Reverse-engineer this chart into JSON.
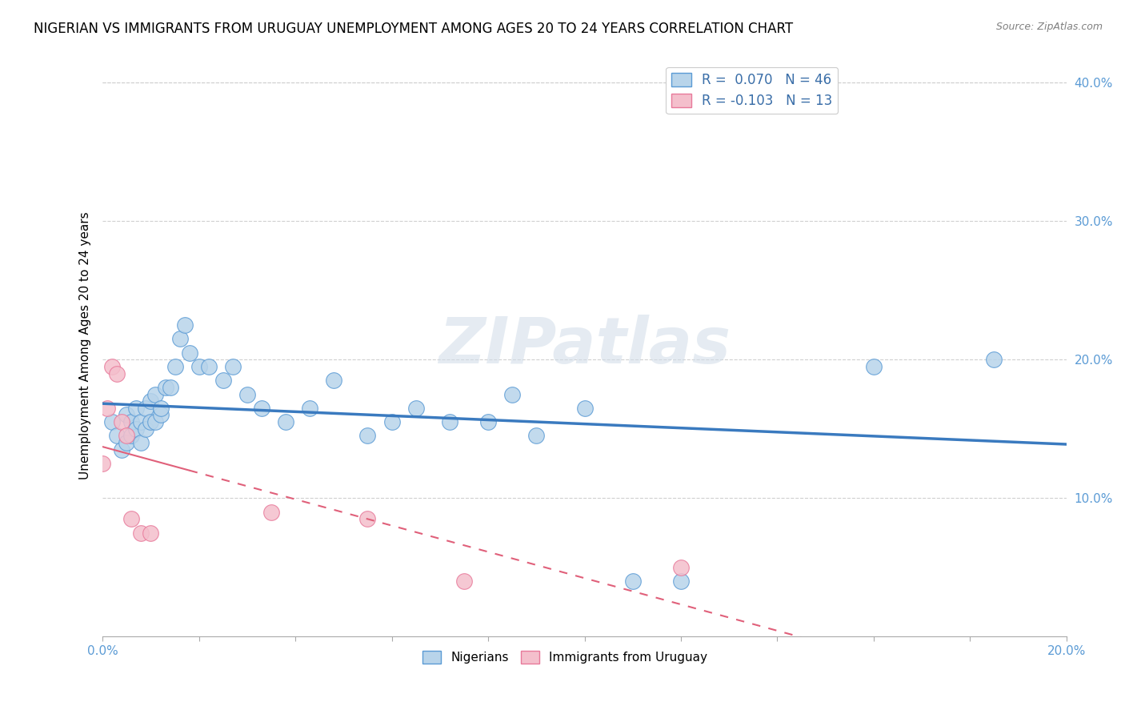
{
  "title": "NIGERIAN VS IMMIGRANTS FROM URUGUAY UNEMPLOYMENT AMONG AGES 20 TO 24 YEARS CORRELATION CHART",
  "source": "Source: ZipAtlas.com",
  "ylabel": "Unemployment Among Ages 20 to 24 years",
  "xlim": [
    0.0,
    0.2
  ],
  "ylim": [
    0.0,
    0.42
  ],
  "background_color": "#ffffff",
  "watermark": "ZIPatlas",
  "nigerian_R": 0.07,
  "nigerian_N": 46,
  "uruguay_R": -0.103,
  "uruguay_N": 13,
  "nigerian_color": "#b8d4ea",
  "nigerian_edge_color": "#5b9bd5",
  "uruguay_color": "#f4bfcc",
  "uruguay_edge_color": "#e8799a",
  "nigerian_line_color": "#3a7abf",
  "uruguay_line_color": "#e0607a",
  "nigerians_x": [
    0.002,
    0.003,
    0.004,
    0.005,
    0.005,
    0.006,
    0.006,
    0.007,
    0.007,
    0.008,
    0.008,
    0.009,
    0.009,
    0.01,
    0.01,
    0.011,
    0.011,
    0.012,
    0.012,
    0.013,
    0.014,
    0.015,
    0.016,
    0.017,
    0.018,
    0.02,
    0.022,
    0.025,
    0.027,
    0.03,
    0.033,
    0.038,
    0.043,
    0.048,
    0.055,
    0.06,
    0.065,
    0.072,
    0.08,
    0.085,
    0.09,
    0.1,
    0.11,
    0.12,
    0.16,
    0.185
  ],
  "nigerians_y": [
    0.155,
    0.145,
    0.135,
    0.14,
    0.16,
    0.145,
    0.155,
    0.15,
    0.165,
    0.155,
    0.14,
    0.15,
    0.165,
    0.155,
    0.17,
    0.155,
    0.175,
    0.16,
    0.165,
    0.18,
    0.18,
    0.195,
    0.215,
    0.225,
    0.205,
    0.195,
    0.195,
    0.185,
    0.195,
    0.175,
    0.165,
    0.155,
    0.165,
    0.185,
    0.145,
    0.155,
    0.165,
    0.155,
    0.155,
    0.175,
    0.145,
    0.165,
    0.04,
    0.04,
    0.195,
    0.2
  ],
  "uruguay_x": [
    0.0,
    0.001,
    0.002,
    0.003,
    0.004,
    0.005,
    0.006,
    0.008,
    0.01,
    0.035,
    0.055,
    0.075,
    0.12
  ],
  "uruguay_y": [
    0.125,
    0.165,
    0.195,
    0.19,
    0.155,
    0.145,
    0.085,
    0.075,
    0.075,
    0.09,
    0.085,
    0.04,
    0.05
  ],
  "legend_blue_label": "R =  0.070   N = 46",
  "legend_pink_label": "R = -0.103   N = 13",
  "grid_color": "#d0d0d0",
  "title_fontsize": 12,
  "label_fontsize": 11,
  "tick_fontsize": 11
}
